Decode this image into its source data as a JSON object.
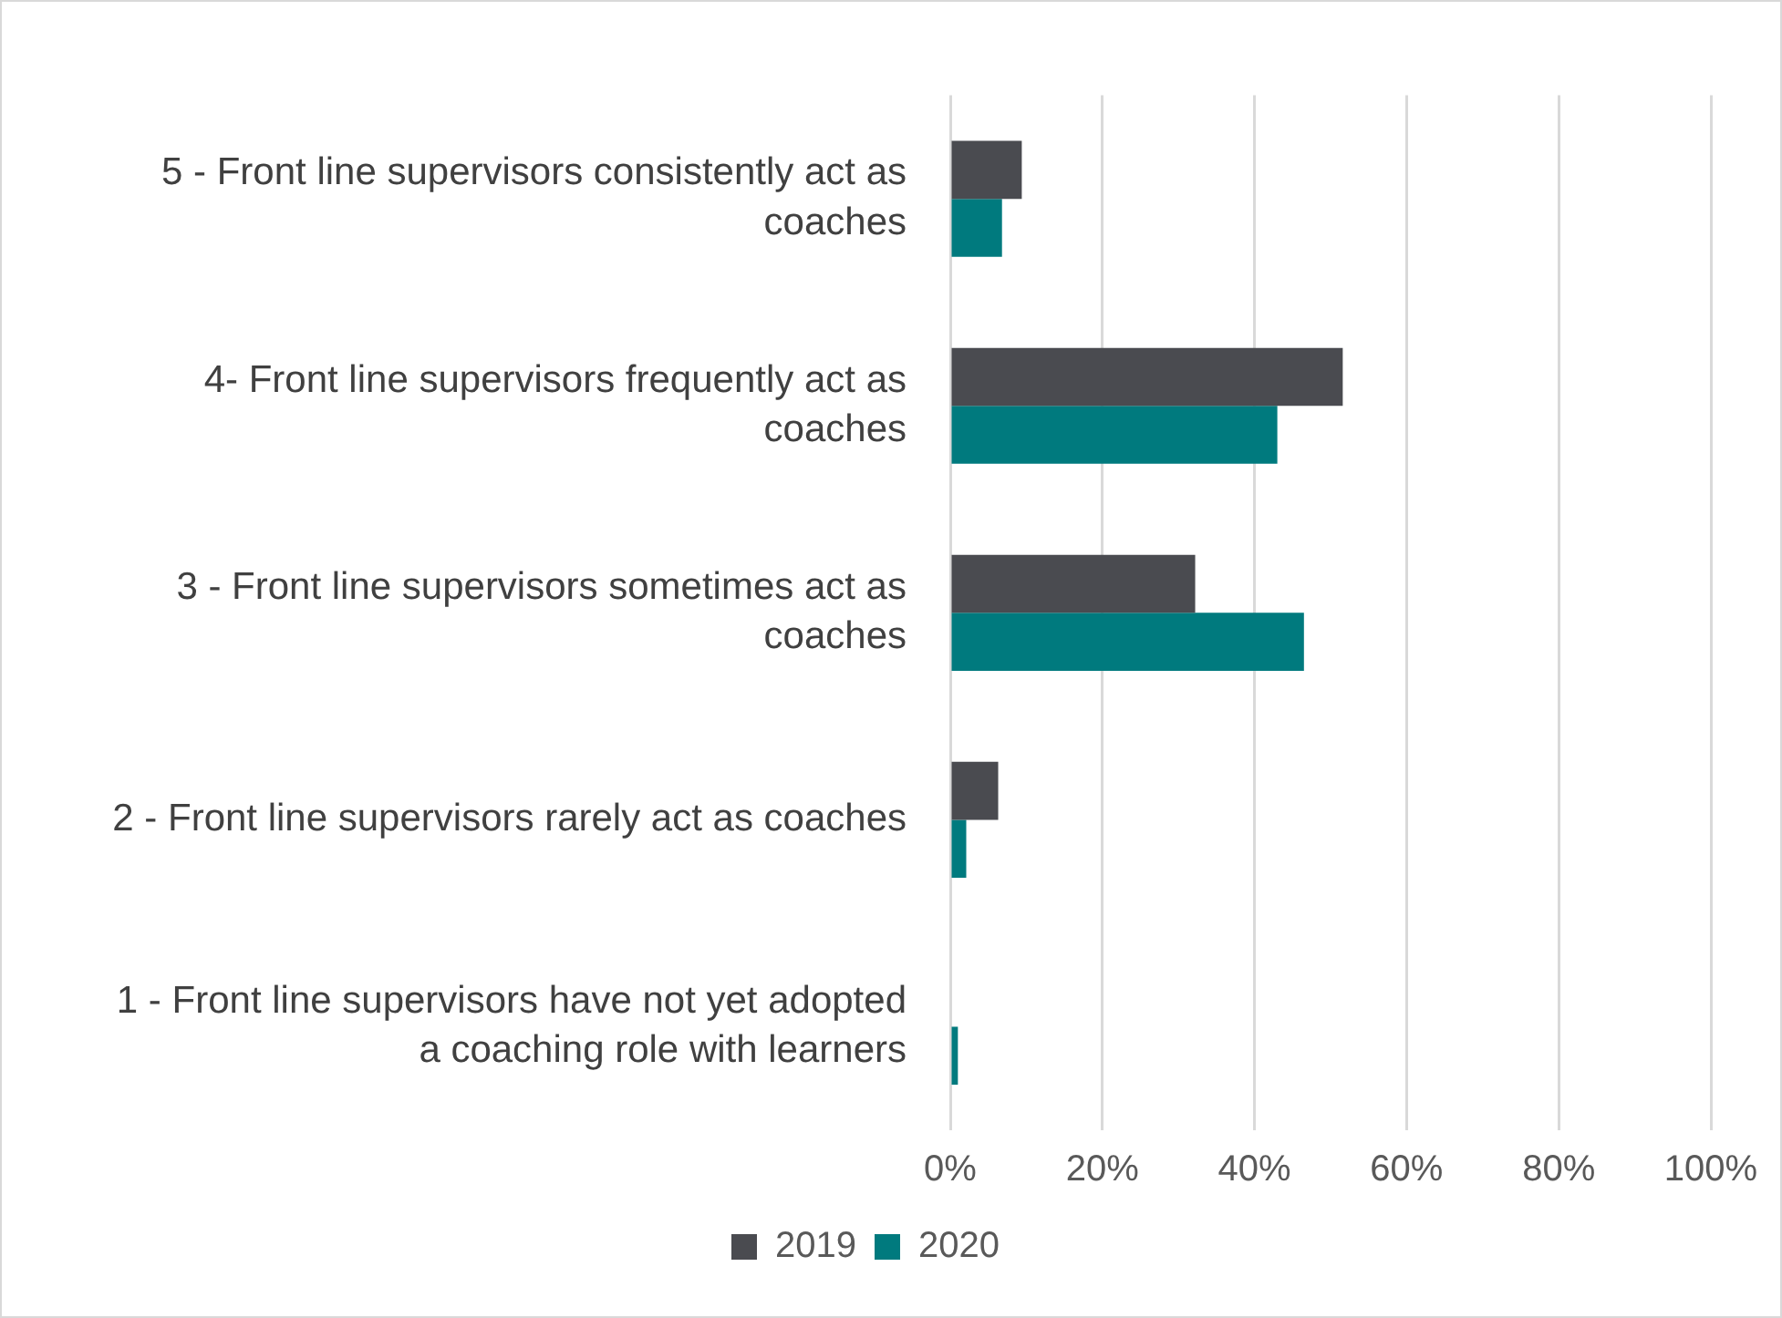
{
  "chart_data": {
    "type": "bar",
    "orientation": "horizontal",
    "categories": [
      "5 - Front line supervisors consistently act as coaches",
      "4- Front line supervisors frequently act as coaches",
      "3 - Front line supervisors sometimes act as coaches",
      "2 - Front line supervisors rarely act as coaches",
      "1 - Front line supervisors have not yet adopted a coaching role with learners"
    ],
    "series": [
      {
        "name": "2019",
        "color": "#4a4b50",
        "values": [
          9.4,
          51.6,
          32.2,
          6.3,
          0
        ]
      },
      {
        "name": "2020",
        "color": "#007a7e",
        "values": [
          6.8,
          43,
          46.5,
          2.1,
          1
        ]
      }
    ],
    "xlim": [
      0,
      100
    ],
    "xticks": [
      {
        "value": 0,
        "label": "0%"
      },
      {
        "value": 20,
        "label": "20%"
      },
      {
        "value": 40,
        "label": "40%"
      },
      {
        "value": 60,
        "label": "60%"
      },
      {
        "value": 80,
        "label": "80%"
      },
      {
        "value": 100,
        "label": "100%"
      }
    ],
    "grid": "x",
    "legend": "bottom"
  }
}
